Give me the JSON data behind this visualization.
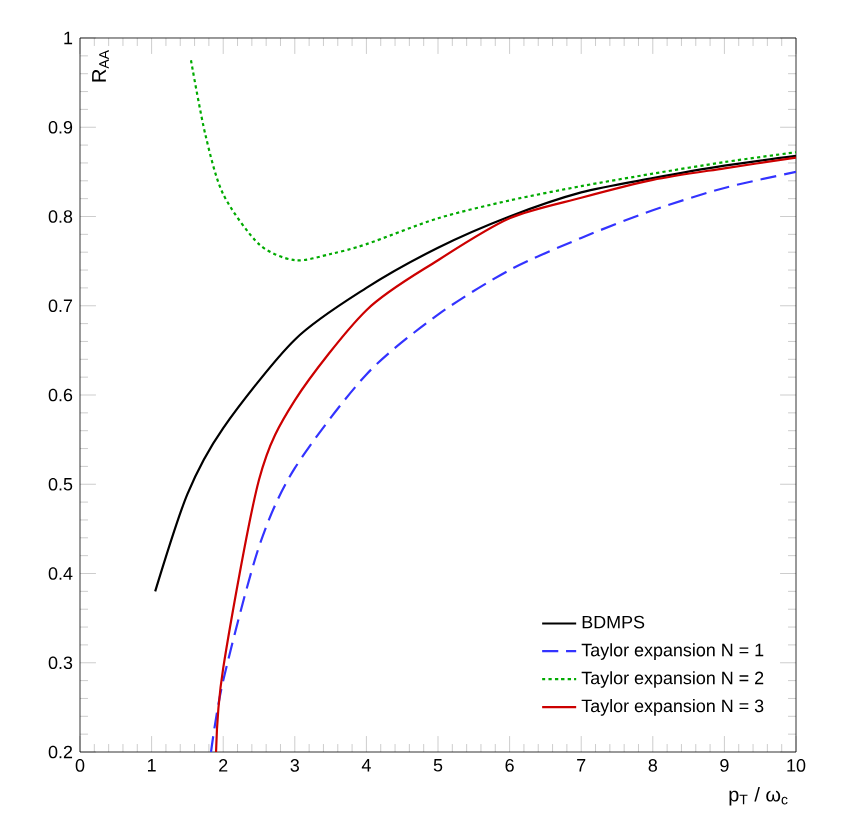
{
  "chart_data": {
    "type": "line",
    "xlabel": "p$_{T}$ / ω$_{c}$",
    "ylabel": "R$_{AA}$",
    "xlim": [
      0,
      10
    ],
    "ylim": [
      0.2,
      1
    ],
    "xticks": [
      0,
      1,
      2,
      3,
      4,
      5,
      6,
      7,
      8,
      9,
      10
    ],
    "yticks": [
      0.2,
      0.3,
      0.4,
      0.5,
      0.6,
      0.7,
      0.8,
      0.9,
      1
    ],
    "legend": "bottom right",
    "grid": false,
    "marker": "none",
    "series": [
      {
        "name": "BDMPS",
        "color": "#000000",
        "line_style": "solid",
        "x": [
          1.05,
          1.5,
          2,
          3,
          4,
          5,
          6,
          7,
          8,
          9,
          10
        ],
        "values": [
          0.38,
          0.489,
          0.563,
          0.662,
          0.72,
          0.765,
          0.8,
          0.827,
          0.843,
          0.857,
          0.868
        ]
      },
      {
        "name": "Taylor expansion N = 1",
        "color": "#3333ff",
        "line_style": "dashed",
        "x": [
          1.83,
          2,
          2.5,
          3,
          4,
          5,
          6,
          7,
          8,
          9,
          10
        ],
        "values": [
          0.2,
          0.28,
          0.43,
          0.518,
          0.623,
          0.69,
          0.74,
          0.776,
          0.807,
          0.832,
          0.85
        ]
      },
      {
        "name": "Taylor expansion N = 2",
        "color": "#00aa00",
        "line_style": "dotted",
        "x": [
          1.55,
          1.75,
          2,
          2.5,
          3,
          3.5,
          4,
          5,
          6,
          7,
          8,
          9,
          10
        ],
        "values": [
          0.975,
          0.892,
          0.825,
          0.769,
          0.751,
          0.758,
          0.769,
          0.798,
          0.818,
          0.834,
          0.848,
          0.861,
          0.872
        ]
      },
      {
        "name": "Taylor expansion N = 3",
        "color": "#cc0000",
        "line_style": "solid",
        "x": [
          1.9,
          2,
          2.5,
          3,
          4,
          5,
          6,
          7,
          8,
          9,
          10
        ],
        "values": [
          0.2,
          0.294,
          0.505,
          0.594,
          0.695,
          0.751,
          0.798,
          0.821,
          0.841,
          0.854,
          0.866
        ]
      }
    ]
  }
}
